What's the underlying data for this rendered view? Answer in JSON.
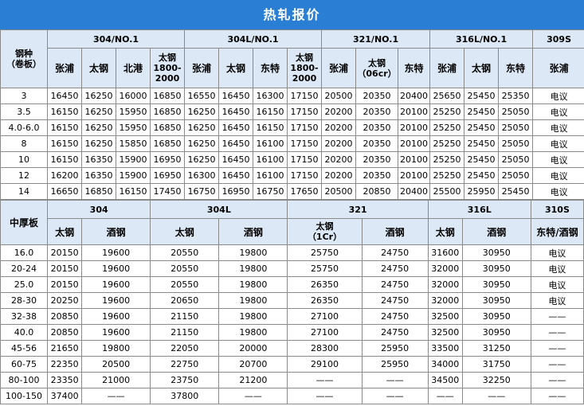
{
  "title": "热轧报价",
  "section1": {
    "row_header": "钢种\n（卷板）",
    "groups": [
      "304/NO.1",
      "304L/NO.1",
      "321/NO.1",
      "316L/NO.1",
      "309S"
    ],
    "subheaders": [
      "张浦",
      "太钢",
      "北港",
      "太钢\n1800-\n2000",
      "张浦",
      "太钢",
      "东特",
      "太钢\n1800-\n2000",
      "张浦",
      "太钢\n（06cr）",
      "东特",
      "张浦",
      "太钢",
      "东特",
      "张浦"
    ],
    "rows": [
      {
        "label": "3",
        "values": [
          "16450",
          "16250",
          "16000",
          "16850",
          "16550",
          "16450",
          "16300",
          "17150",
          "20500",
          "20350",
          "20400",
          "25650",
          "25450",
          "25350",
          "电议"
        ]
      },
      {
        "label": "3.5",
        "values": [
          "16150",
          "16250",
          "15950",
          "16850",
          "16250",
          "16450",
          "16150",
          "17150",
          "20200",
          "20350",
          "20100",
          "25250",
          "25450",
          "25050",
          "电议"
        ]
      },
      {
        "label": "4.0-6.0",
        "values": [
          "16150",
          "16250",
          "15950",
          "16850",
          "16250",
          "16450",
          "16150",
          "17150",
          "20200",
          "20350",
          "20100",
          "25250",
          "25450",
          "25050",
          "电议"
        ]
      },
      {
        "label": "8",
        "values": [
          "16150",
          "16250",
          "15850",
          "16850",
          "16250",
          "16450",
          "16100",
          "17150",
          "20200",
          "20350",
          "20100",
          "25250",
          "25450",
          "25050",
          "电议"
        ]
      },
      {
        "label": "10",
        "values": [
          "16150",
          "16350",
          "15900",
          "16950",
          "16250",
          "16450",
          "16100",
          "17150",
          "20200",
          "20350",
          "20100",
          "25250",
          "25450",
          "25050",
          "电议"
        ]
      },
      {
        "label": "12",
        "values": [
          "16200",
          "16350",
          "15900",
          "16950",
          "16300",
          "16450",
          "16100",
          "17150",
          "20200",
          "20350",
          "20100",
          "25250",
          "25450",
          "25050",
          "电议"
        ]
      },
      {
        "label": "14",
        "values": [
          "16650",
          "16850",
          "16150",
          "17450",
          "16750",
          "16950",
          "16750",
          "17650",
          "20500",
          "20850",
          "20400",
          "25500",
          "25950",
          "25450",
          "电议"
        ]
      }
    ]
  },
  "section2": {
    "row_header": "中厚板",
    "groups": [
      "304",
      "304L",
      "321",
      "316L",
      "310S"
    ],
    "subheaders": [
      "太钢",
      "酒钢",
      "太钢",
      "酒钢",
      "太钢\n（1Cr）",
      "酒钢",
      "太钢",
      "酒钢",
      "东特/酒钢"
    ],
    "rows": [
      {
        "label": "16.0",
        "values": [
          "20150",
          "19600",
          "20550",
          "19800",
          "25750",
          "24750",
          "31600",
          "30950",
          "电议"
        ]
      },
      {
        "label": "20-24",
        "values": [
          "20150",
          "19600",
          "20550",
          "19800",
          "25750",
          "24750",
          "32000",
          "30950",
          "电议"
        ]
      },
      {
        "label": "25.0",
        "values": [
          "20150",
          "19600",
          "20550",
          "19800",
          "26350",
          "24750",
          "32000",
          "30950",
          "电议"
        ]
      },
      {
        "label": "28-30",
        "values": [
          "20250",
          "19600",
          "20650",
          "19800",
          "26350",
          "24750",
          "32000",
          "30950",
          "电议"
        ]
      },
      {
        "label": "32-38",
        "values": [
          "20850",
          "19600",
          "21150",
          "19800",
          "27100",
          "24750",
          "32500",
          "30950",
          "——"
        ]
      },
      {
        "label": "40.0",
        "values": [
          "20850",
          "19600",
          "21150",
          "19800",
          "27100",
          "24750",
          "32500",
          "30950",
          "——"
        ]
      },
      {
        "label": "45-56",
        "values": [
          "21650",
          "19800",
          "22050",
          "20000",
          "28300",
          "25950",
          "33500",
          "31250",
          "——"
        ]
      },
      {
        "label": "60-75",
        "values": [
          "22350",
          "20500",
          "22750",
          "20700",
          "29100",
          "25950",
          "34000",
          "31750",
          "——"
        ]
      },
      {
        "label": "80-100",
        "values": [
          "23350",
          "21000",
          "23750",
          "21200",
          "——",
          "——",
          "34500",
          "32250",
          "——"
        ]
      },
      {
        "label": "100-150",
        "values": [
          "37400",
          "——",
          "37800",
          "——",
          "——",
          "——",
          "——",
          "——",
          "——"
        ]
      }
    ]
  }
}
